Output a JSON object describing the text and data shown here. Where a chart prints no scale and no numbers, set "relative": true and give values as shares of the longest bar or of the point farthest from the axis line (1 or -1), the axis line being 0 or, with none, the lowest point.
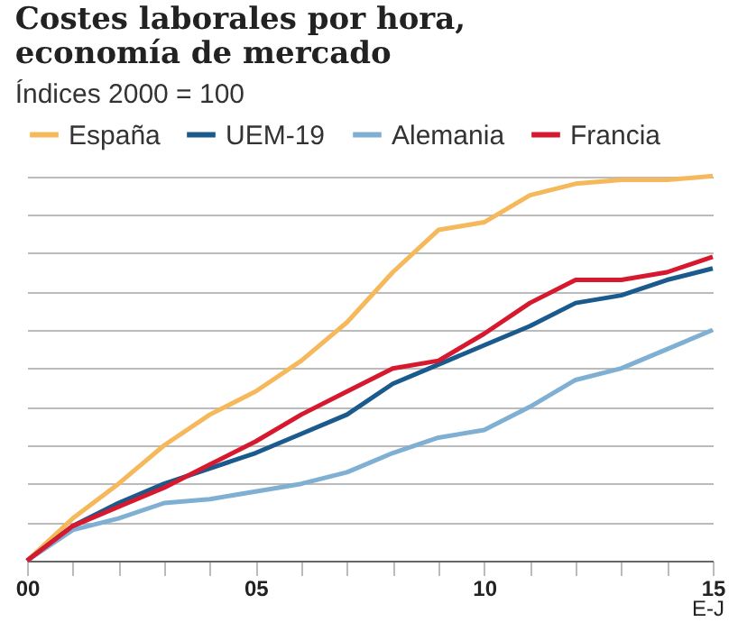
{
  "chart_data": {
    "type": "line",
    "title": [
      "Costes laborales por hora,",
      "economía de mercado"
    ],
    "subtitle": "Índices 2000 = 100",
    "relative": true,
    "x": [
      2000,
      2001,
      2002,
      2003,
      2004,
      2005,
      2006,
      2007,
      2008,
      2009,
      2010,
      2011,
      2012,
      2013,
      2014,
      2015
    ],
    "xlim": [
      2000,
      2015
    ],
    "xticks": [
      {
        "value": 2000,
        "label": "00"
      },
      {
        "value": 2001,
        "label": null
      },
      {
        "value": 2002,
        "label": null
      },
      {
        "value": 2003,
        "label": null
      },
      {
        "value": 2004,
        "label": null
      },
      {
        "value": 2005,
        "label": "05"
      },
      {
        "value": 2006,
        "label": null
      },
      {
        "value": 2007,
        "label": null
      },
      {
        "value": 2008,
        "label": null
      },
      {
        "value": 2009,
        "label": null
      },
      {
        "value": 2010,
        "label": "10"
      },
      {
        "value": 2011,
        "label": null
      },
      {
        "value": 2012,
        "label": null
      },
      {
        "value": 2013,
        "label": null
      },
      {
        "value": 2014,
        "label": null
      },
      {
        "value": 2015,
        "label": "15"
      }
    ],
    "annotations": [
      "E-J"
    ],
    "series": [
      {
        "name": "España",
        "color": "#f5b85a",
        "values": [
          0,
          0.11,
          0.2,
          0.3,
          0.38,
          0.44,
          0.52,
          0.62,
          0.75,
          0.86,
          0.88,
          0.95,
          0.98,
          0.99,
          0.99,
          1
        ]
      },
      {
        "name": "UEM-19",
        "color": "#1a5a8c",
        "values": [
          0,
          0.09,
          0.15,
          0.2,
          0.24,
          0.28,
          0.33,
          0.38,
          0.46,
          0.51,
          0.56,
          0.61,
          0.67,
          0.69,
          0.73,
          0.76
        ]
      },
      {
        "name": "Alemania",
        "color": "#7fb0d3",
        "values": [
          0,
          0.08,
          0.11,
          0.15,
          0.16,
          0.18,
          0.2,
          0.23,
          0.28,
          0.32,
          0.34,
          0.4,
          0.47,
          0.5,
          0.55,
          0.6
        ]
      },
      {
        "name": "Francia",
        "color": "#d7192f",
        "values": [
          0,
          0.09,
          0.14,
          0.19,
          0.25,
          0.31,
          0.38,
          0.44,
          0.5,
          0.52,
          0.59,
          0.67,
          0.73,
          0.73,
          0.75,
          0.79
        ]
      }
    ],
    "grid": "y",
    "legend": "top",
    "tick_labels": "x",
    "marker": "none",
    "line_style": "solid"
  }
}
